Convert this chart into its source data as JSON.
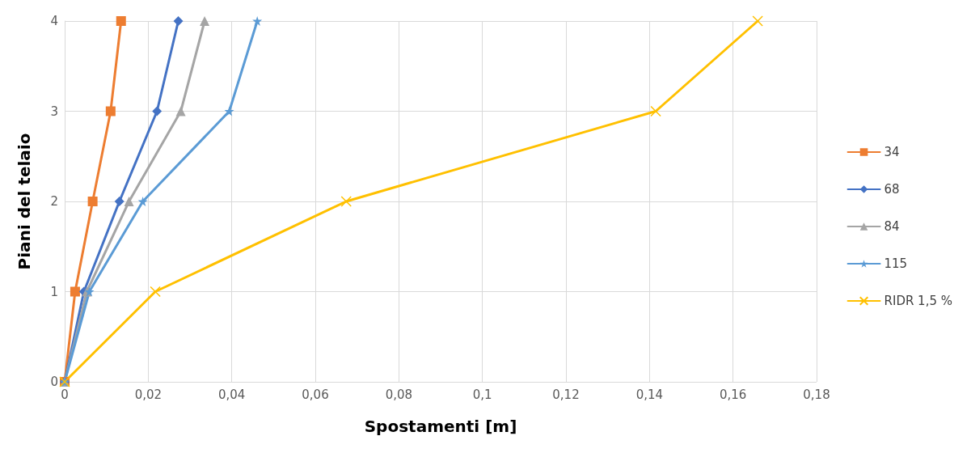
{
  "chart_data": {
    "type": "line",
    "xlabel": "Spostamenti [m]",
    "ylabel": "Piani del telaio",
    "xlim": [
      0,
      0.18
    ],
    "xticks": [
      {
        "value": 0,
        "label": "0"
      },
      {
        "value": 0.02,
        "label": "0,02"
      },
      {
        "value": 0.04,
        "label": "0,04"
      },
      {
        "value": 0.06,
        "label": "0,06"
      },
      {
        "value": 0.08,
        "label": "0,08"
      },
      {
        "value": 0.1,
        "label": "0,1"
      },
      {
        "value": 0.12,
        "label": "0,12"
      },
      {
        "value": 0.14,
        "label": "0,14"
      },
      {
        "value": 0.16,
        "label": "0,16"
      },
      {
        "value": 0.18,
        "label": "0,18"
      }
    ],
    "ylim": [
      0,
      4
    ],
    "yticks": [
      0,
      1,
      2,
      3,
      4
    ],
    "grid": true,
    "legend": "right",
    "series": [
      {
        "name": "34",
        "color": "#ed7d31",
        "marker": "square",
        "x": [
          0,
          0.0025,
          0.0067,
          0.011,
          0.0135
        ],
        "values": [
          0,
          1,
          2,
          3,
          4
        ]
      },
      {
        "name": "68",
        "color": "#4472c4",
        "marker": "diamond",
        "x": [
          0,
          0.0046,
          0.0131,
          0.0221,
          0.0272
        ],
        "values": [
          0,
          1,
          2,
          3,
          4
        ]
      },
      {
        "name": "84",
        "color": "#a5a5a5",
        "marker": "triangle",
        "x": [
          0,
          0.0053,
          0.0154,
          0.0278,
          0.0335
        ],
        "values": [
          0,
          1,
          2,
          3,
          4
        ]
      },
      {
        "name": "115",
        "color": "#5b9bd5",
        "marker": "star",
        "x": [
          0,
          0.0059,
          0.0187,
          0.0394,
          0.0461
        ],
        "values": [
          0,
          1,
          2,
          3,
          4
        ]
      },
      {
        "name": "RIDR 1,5 %",
        "color": "#ffc000",
        "marker": "cross",
        "x": [
          0,
          0.0217,
          0.0674,
          0.1415,
          0.1659
        ],
        "values": [
          0,
          1,
          2,
          3,
          4
        ]
      }
    ]
  }
}
